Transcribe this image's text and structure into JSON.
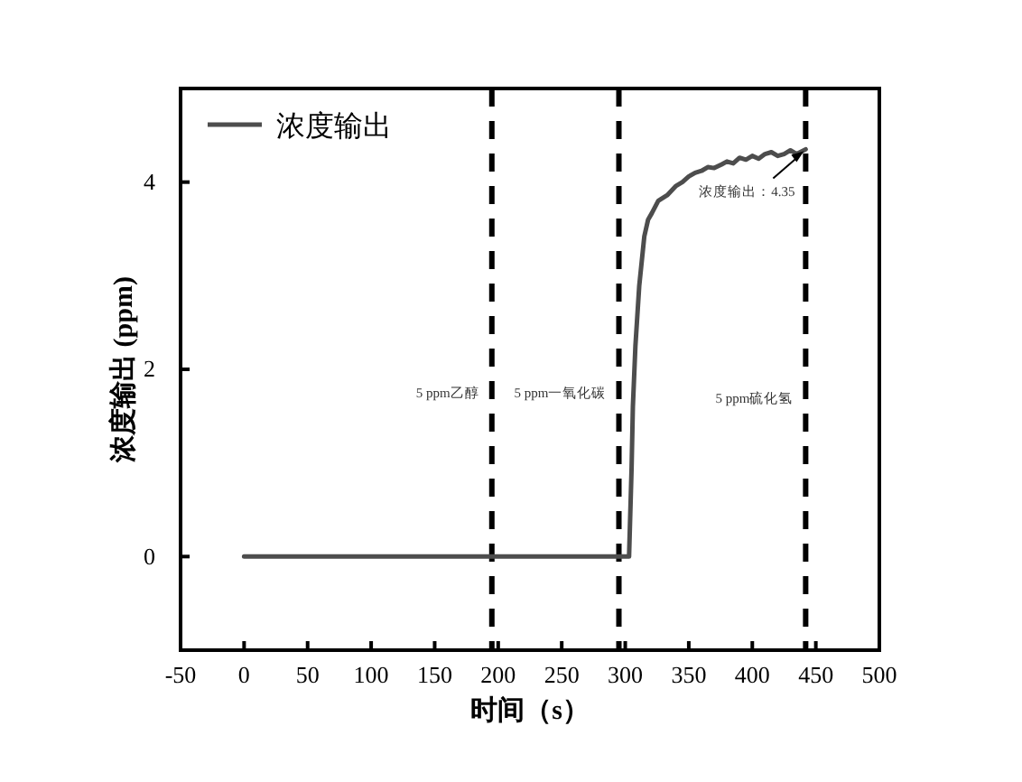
{
  "chart_data": {
    "type": "line",
    "xlabel": "时间（s）",
    "ylabel": "浓度输出 (ppm)",
    "xlim": [
      -50,
      500
    ],
    "xticks": [
      -50,
      0,
      50,
      100,
      150,
      200,
      250,
      300,
      350,
      400,
      450,
      500
    ],
    "ylim": [
      -1,
      5
    ],
    "yticks": [
      0,
      2,
      4
    ],
    "series": [
      {
        "name": "浓度输出",
        "color": "#4d4d4d",
        "x": [
          0,
          50,
          100,
          150,
          200,
          250,
          300,
          303,
          305,
          306,
          308,
          311,
          315,
          318,
          321,
          326,
          333,
          340,
          345,
          350,
          355,
          360,
          365,
          370,
          376,
          380,
          385,
          390,
          395,
          400,
          405,
          410,
          415,
          420,
          425,
          430,
          435,
          442
        ],
        "values": [
          0,
          0,
          0,
          0,
          0,
          0,
          0,
          0,
          0.95,
          1.6,
          2.25,
          2.89,
          3.42,
          3.6,
          3.67,
          3.8,
          3.86,
          3.96,
          4.0,
          4.06,
          4.1,
          4.12,
          4.16,
          4.15,
          4.19,
          4.22,
          4.2,
          4.26,
          4.24,
          4.28,
          4.25,
          4.3,
          4.32,
          4.28,
          4.3,
          4.34,
          4.3,
          4.35
        ]
      }
    ],
    "ref_lines": [
      {
        "axis": "x",
        "value": 195,
        "color": "#000000",
        "line_style": "dashed"
      },
      {
        "axis": "x",
        "value": 295,
        "color": "#000000",
        "line_style": "dashed"
      },
      {
        "axis": "x",
        "value": 442,
        "color": "#000000",
        "line_style": "dashed"
      }
    ],
    "annotations": [
      "5 ppm乙醇",
      "5 ppm一氧化碳",
      "5 ppm硫化氢",
      {
        "text": "浓度输出：4.35",
        "x": 442,
        "y": 4.35
      }
    ],
    "legend": "top left",
    "grid": false,
    "line_style": "solid",
    "marker": "none"
  }
}
